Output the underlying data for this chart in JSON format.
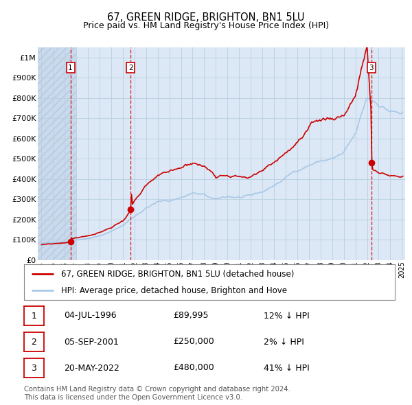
{
  "title": "67, GREEN RIDGE, BRIGHTON, BN1 5LU",
  "subtitle": "Price paid vs. HM Land Registry's House Price Index (HPI)",
  "ylabel_ticks": [
    "£0",
    "£100K",
    "£200K",
    "£300K",
    "£400K",
    "£500K",
    "£600K",
    "£700K",
    "£800K",
    "£900K",
    "£1M"
  ],
  "ytick_vals": [
    0,
    100000,
    200000,
    300000,
    400000,
    500000,
    600000,
    700000,
    800000,
    900000,
    1000000
  ],
  "ylim": [
    0,
    1050000
  ],
  "xlim_start": 1993.7,
  "xlim_end": 2025.3,
  "xtick_years": [
    1994,
    1995,
    1996,
    1997,
    1998,
    1999,
    2000,
    2001,
    2002,
    2003,
    2004,
    2005,
    2006,
    2007,
    2008,
    2009,
    2010,
    2011,
    2012,
    2013,
    2014,
    2015,
    2016,
    2017,
    2018,
    2019,
    2020,
    2021,
    2022,
    2023,
    2024,
    2025
  ],
  "hpi_color": "#a8c8e8",
  "price_color": "#cc0000",
  "hatch_end_year": 1997.0,
  "purchase_events": [
    {
      "year": 1996.5,
      "price": 89995,
      "label": "1",
      "date": "04-JUL-1996",
      "price_str": "£89,995",
      "pct": "12% ↓ HPI"
    },
    {
      "year": 2001.67,
      "price": 250000,
      "label": "2",
      "date": "05-SEP-2001",
      "price_str": "£250,000",
      "pct": "2% ↓ HPI"
    },
    {
      "year": 2022.38,
      "price": 480000,
      "label": "3",
      "date": "20-MAY-2022",
      "price_str": "£480,000",
      "pct": "41% ↓ HPI"
    }
  ],
  "legend_label_red": "67, GREEN RIDGE, BRIGHTON, BN1 5LU (detached house)",
  "legend_label_blue": "HPI: Average price, detached house, Brighton and Hove",
  "footer": "Contains HM Land Registry data © Crown copyright and database right 2024.\nThis data is licensed under the Open Government Licence v3.0.",
  "bg_color": "#ffffff",
  "chart_bg": "#dce8f5",
  "grid_color": "#b8cfe0"
}
